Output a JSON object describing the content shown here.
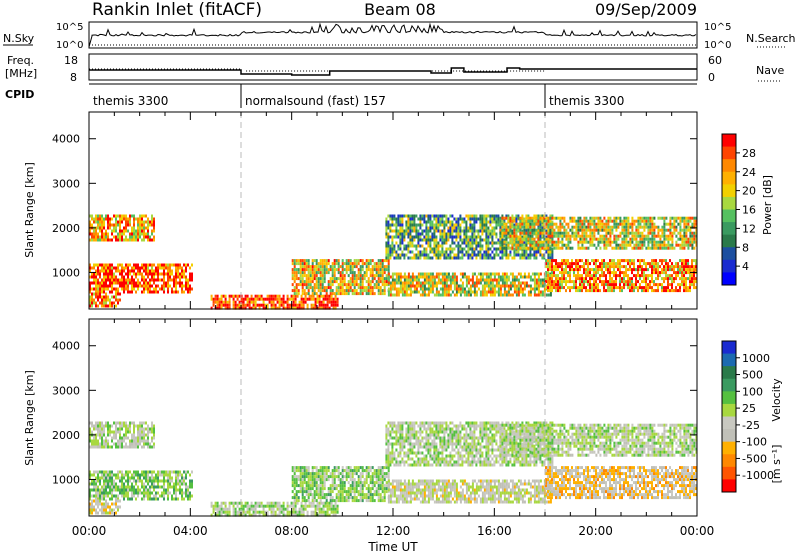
{
  "header": {
    "station": "Rankin Inlet (fitACF)",
    "beam": "Beam 08",
    "date": "09/Sep/2009"
  },
  "noise_panel": {
    "left_label": "N.Sky",
    "left_ticks": [
      "10^5",
      "10^0"
    ],
    "right_label": "N.Search",
    "right_ticks": [
      "10^5",
      "10^0"
    ]
  },
  "freq_panel": {
    "left_label_top": "Freq.",
    "left_label_bottom": "[MHz]",
    "left_ticks": [
      "18",
      "8"
    ],
    "right_label": "Nave",
    "right_ticks": [
      "60",
      "0"
    ]
  },
  "cpid_panel": {
    "label": "CPID",
    "modes": [
      {
        "name": "themis 3300",
        "start": 0
      },
      {
        "name": "normalsound (fast) 157",
        "start": 6
      },
      {
        "name": "themis 3300",
        "start": 18
      }
    ]
  },
  "power_panel": {
    "ylabel": "Slant Range [km]",
    "yticks": [
      "4000",
      "3000",
      "2000",
      "1000"
    ],
    "colorbar_label": "Power [dB]",
    "colorbar_ticks": [
      "28",
      "24",
      "20",
      "16",
      "12",
      "8",
      "4"
    ],
    "colorbar_colors": [
      "#ff0000",
      "#ff4400",
      "#ff8800",
      "#ffb000",
      "#f2d000",
      "#a8d840",
      "#55c060",
      "#3a9a60",
      "#2a7a4a",
      "#1c4fa0",
      "#1a2bd0",
      "#0000ff"
    ]
  },
  "velocity_panel": {
    "ylabel": "Slant Range [km]",
    "yticks": [
      "4000",
      "3000",
      "2000",
      "1000"
    ],
    "colorbar_label": "Velocity",
    "colorbar_unit": "[m s⁻¹]",
    "colorbar_ticks": [
      "1000",
      "500",
      "100",
      "25",
      "-25",
      "-100",
      "-500",
      "-1000"
    ],
    "colorbar_colors": [
      "#1a2bd0",
      "#1c6ab0",
      "#2a7a4a",
      "#3a9a60",
      "#55c040",
      "#a8d840",
      "#c8c8c0",
      "#c0c0b8",
      "#ffb000",
      "#ff8800",
      "#ff5500",
      "#ff0000"
    ]
  },
  "x_axis": {
    "label": "Time UT",
    "ticks": [
      "00:00",
      "04:00",
      "08:00",
      "12:00",
      "16:00",
      "20:00",
      "00:00"
    ]
  },
  "chart_data": {
    "type": "heatmap",
    "title": "Rankin Inlet (fitACF)",
    "x": {
      "label": "Time UT",
      "range_hours": [
        0,
        24
      ]
    },
    "y": {
      "label": "Slant Range [km]",
      "range": [
        180,
        4600
      ]
    },
    "series": [
      {
        "name": "Power [dB]",
        "range": [
          0,
          30
        ]
      },
      {
        "name": "Velocity",
        "range": [
          -1000,
          1000
        ]
      }
    ],
    "echo_regions": [
      {
        "t": [
          0,
          2.6
        ],
        "r": [
          1750,
          2300
        ],
        "power": 22,
        "velocity": 10
      },
      {
        "t": [
          0,
          4.1
        ],
        "r": [
          580,
          1200
        ],
        "power": 26,
        "velocity": 150
      },
      {
        "t": [
          0,
          1.2
        ],
        "r": [
          250,
          550
        ],
        "power": 24,
        "velocity": -200
      },
      {
        "t": [
          4.8,
          9.8
        ],
        "r": [
          200,
          500
        ],
        "power": 27,
        "velocity": 40
      },
      {
        "t": [
          8.0,
          11.8
        ],
        "r": [
          550,
          1300
        ],
        "power": 19,
        "velocity": 120
      },
      {
        "t": [
          11.7,
          18.3
        ],
        "r": [
          1300,
          2300
        ],
        "power": 12,
        "velocity": 5
      },
      {
        "t": [
          11.8,
          18.2
        ],
        "r": [
          500,
          1000
        ],
        "power": 18,
        "velocity": -120
      },
      {
        "t": [
          16.2,
          24
        ],
        "r": [
          1550,
          2250
        ],
        "power": 18,
        "velocity": 0
      },
      {
        "t": [
          18.0,
          24
        ],
        "r": [
          600,
          1300
        ],
        "power": 23,
        "velocity": -300
      }
    ]
  }
}
